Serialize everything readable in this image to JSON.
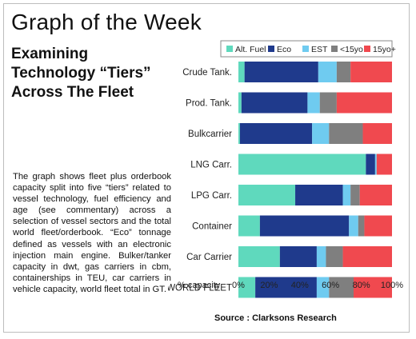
{
  "page": {
    "title": "Graph of the Week",
    "subtitle_lines": [
      "Examining",
      "Technology “Tiers”",
      "Across The Fleet"
    ],
    "commentary": "The graph shows fleet plus orderbook capacity split into five “tiers” related to vessel technology, fuel efficiency and age (see commentary) across a selection of vessel sectors and the total world fleet/orderbook. “Eco” tonnage defined as vessels with an electronic injection main engine. Bulker/tanker capacity in dwt, gas carriers in cbm, containerships in TEU, car carriers in vehicle capacity, world fleet total in GT.",
    "source": "Source : Clarksons Research"
  },
  "chart_data": {
    "type": "bar",
    "orientation": "horizontal",
    "stacked": true,
    "categories": [
      "Crude Tank.",
      "Prod. Tank.",
      "Bulkcarrier",
      "LNG Carr.",
      "LPG Carr.",
      "Container",
      "Car Carrier",
      "WORLD FLEET"
    ],
    "series": [
      {
        "name": "Alt. Fuel",
        "color": "#5fd9bd",
        "values": [
          4,
          2,
          1,
          83,
          37,
          14,
          27,
          11
        ]
      },
      {
        "name": "Eco",
        "color": "#1f3a8c",
        "values": [
          48,
          43,
          47,
          6,
          31,
          58,
          24,
          40
        ]
      },
      {
        "name": "EST",
        "color": "#6fcbf0",
        "values": [
          12,
          8,
          11,
          1,
          5,
          6,
          6,
          8
        ]
      },
      {
        "name": "<15yo",
        "color": "#7f7f7f",
        "values": [
          9,
          11,
          22,
          0,
          6,
          4,
          11,
          16
        ]
      },
      {
        "name": "15yo+",
        "color": "#f0494f",
        "values": [
          27,
          36,
          19,
          10,
          21,
          18,
          32,
          25
        ]
      }
    ],
    "xlabel": "% capacity",
    "xlim": [
      0,
      100
    ],
    "xticks": [
      "0%",
      "20%",
      "40%",
      "60%",
      "80%",
      "100%"
    ],
    "legend_position": "top",
    "grid": false
  }
}
